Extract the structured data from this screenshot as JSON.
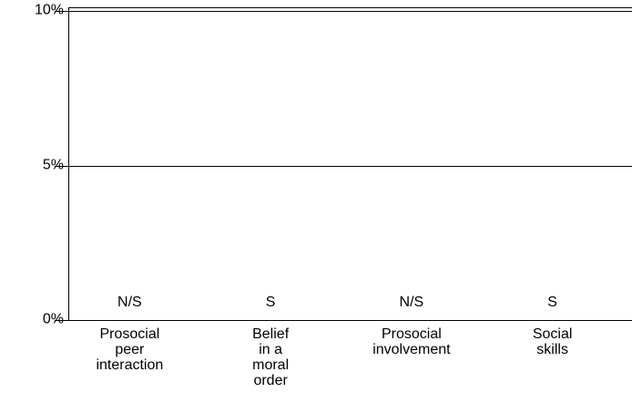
{
  "chart_data": {
    "type": "bar",
    "categories": [
      "Prosocial\npeer\ninteraction",
      "Belief\nin a\nmoral\norder",
      "Prosocial\ninvolvement",
      "Social\nskills"
    ],
    "values": [
      0,
      0,
      0,
      0
    ],
    "annotations": [
      "N/S",
      "S",
      "N/S",
      "S"
    ],
    "color": "#808080",
    "ylim": [
      0,
      10
    ],
    "yticks": [
      {
        "value": 0,
        "label": "0%"
      },
      {
        "value": 5,
        "label": "5%"
      },
      {
        "value": 10,
        "label": "10%"
      }
    ],
    "grid": true
  }
}
